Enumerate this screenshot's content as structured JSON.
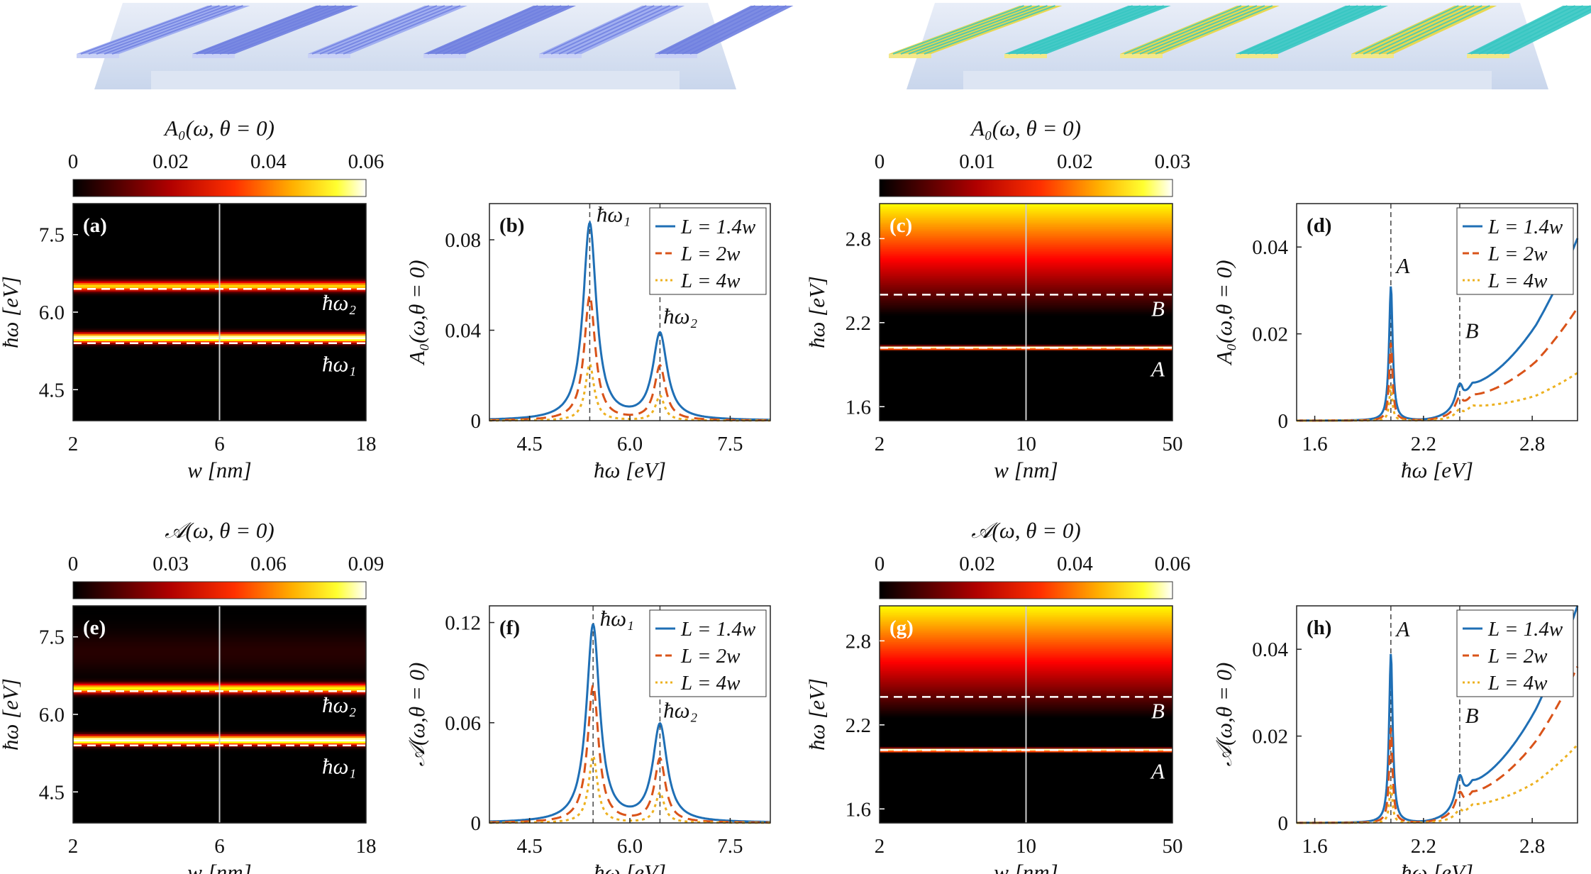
{
  "colors": {
    "blue": "#1f6fb5",
    "red": "#d95319",
    "yellow": "#edb120",
    "dash": "#444444",
    "white_dash": "#ffffff",
    "illus_left": "#7a8fe6",
    "illus_right_a": "#e8d640",
    "illus_right_b": "#35c7c2"
  },
  "illustrations": [
    {
      "name": "illustration-left",
      "ribbons": 6,
      "palette": [
        "#9aa9ef",
        "#6f7fe0",
        "#c9d1f6"
      ]
    },
    {
      "name": "illustration-right",
      "ribbons": 6,
      "palette": [
        "#e8d640",
        "#35c7c2",
        "#f2e88a"
      ]
    }
  ],
  "colorbars": [
    {
      "id": "cb-a",
      "title": "A₀(ω, θ = 0)",
      "ticks": [
        "0",
        "0.02",
        "0.04",
        "0.06"
      ]
    },
    {
      "id": "cb-c",
      "title": "A₀(ω, θ = 0)",
      "ticks": [
        "0",
        "0.01",
        "0.02",
        "0.03"
      ]
    },
    {
      "id": "cb-e",
      "title": "𝒜(ω, θ = 0)",
      "ticks": [
        "0",
        "0.03",
        "0.06",
        "0.09"
      ]
    },
    {
      "id": "cb-g",
      "title": "𝒜(ω, θ = 0)",
      "ticks": [
        "0",
        "0.02",
        "0.04",
        "0.06"
      ]
    }
  ],
  "chart_data": [
    {
      "panel": "(a)",
      "type": "heatmap",
      "xlabel": "w [nm]",
      "ylabel": "ħω [eV]",
      "xticks": [
        "2",
        "6",
        "18"
      ],
      "yticks": [
        "4.5",
        "6.0",
        "7.5"
      ],
      "ylim": [
        3.9,
        8.1
      ],
      "xscale": "log",
      "xlim": [
        2,
        18
      ],
      "bright_bands": [
        {
          "y": 5.5,
          "strength": 1.0
        },
        {
          "y": 6.5,
          "strength": 0.75
        }
      ],
      "dashed_lines": [
        {
          "y": 5.4,
          "label": "ħω₁"
        },
        {
          "y": 6.45,
          "label": "ħω₂"
        }
      ],
      "vertical_line_x": 6
    },
    {
      "panel": "(b)",
      "type": "line",
      "xlabel": "ħω [eV]",
      "ylabel": "A₀(ω,θ = 0)",
      "xticks": [
        "4.5",
        "6.0",
        "7.5"
      ],
      "yticks": [
        "0",
        "0.04",
        "0.08"
      ],
      "xlim": [
        3.9,
        8.1
      ],
      "ylim": [
        0,
        0.096
      ],
      "peaks_x": [
        5.4,
        6.45
      ],
      "series": [
        {
          "name": "L = 1.4w",
          "amps": [
            0.087,
            0.038
          ],
          "widths": [
            0.12,
            0.13
          ],
          "base": 0.0,
          "rise": 0.0
        },
        {
          "name": "L = 2w",
          "amps": [
            0.055,
            0.024
          ],
          "widths": [
            0.1,
            0.1
          ],
          "base": 0.0,
          "rise": 0.0
        },
        {
          "name": "L = 4w",
          "amps": [
            0.025,
            0.011
          ],
          "widths": [
            0.08,
            0.08
          ],
          "base": 0.0,
          "rise": 0.0
        }
      ],
      "annotations": [
        {
          "text": "ħω₁",
          "x": 5.5,
          "y": 0.088
        },
        {
          "text": "ħω₂",
          "x": 6.5,
          "y": 0.043
        }
      ],
      "legend": "top-right"
    },
    {
      "panel": "(c)",
      "type": "heatmap",
      "xlabel": "w [nm]",
      "ylabel": "ħω [eV]",
      "xticks": [
        "2",
        "10",
        "50"
      ],
      "yticks": [
        "1.6",
        "2.2",
        "2.8"
      ],
      "ylim": [
        1.5,
        3.05
      ],
      "xscale": "log",
      "xlim": [
        2,
        50
      ],
      "bright_bands": [
        {
          "y": 2.02,
          "strength": 1.0
        }
      ],
      "dashed_lines": [
        {
          "y": 2.02,
          "label": "A"
        },
        {
          "y": 2.4,
          "label": "B"
        }
      ],
      "vertical_line_x": 10
    },
    {
      "panel": "(d)",
      "type": "line",
      "xlabel": "ħω [eV]",
      "ylabel": "A₀(ω,θ = 0)",
      "xticks": [
        "1.6",
        "2.2",
        "2.8"
      ],
      "yticks": [
        "0",
        "0.02",
        "0.04"
      ],
      "xlim": [
        1.5,
        3.05
      ],
      "ylim": [
        0,
        0.05
      ],
      "peaks_x": [
        2.02,
        2.4
      ],
      "series": [
        {
          "name": "L = 1.4w",
          "amps": [
            0.031,
            0.006
          ],
          "widths": [
            0.012,
            0.03
          ],
          "base": 0.042,
          "rise": 1.0
        },
        {
          "name": "L = 2w",
          "amps": [
            0.018,
            0.004
          ],
          "widths": [
            0.011,
            0.03
          ],
          "base": 0.026,
          "rise": 0.8
        },
        {
          "name": "L = 4w",
          "amps": [
            0.008,
            0.002
          ],
          "widths": [
            0.01,
            0.03
          ],
          "base": 0.011,
          "rise": 0.6
        }
      ],
      "annotations": [
        {
          "text": "A",
          "x": 2.05,
          "y": 0.034
        },
        {
          "text": "B",
          "x": 2.43,
          "y": 0.019
        }
      ],
      "legend": "top-right"
    },
    {
      "panel": "(e)",
      "type": "heatmap",
      "xlabel": "w [nm]",
      "ylabel": "ħω [eV]",
      "xticks": [
        "2",
        "6",
        "18"
      ],
      "yticks": [
        "4.5",
        "6.0",
        "7.5"
      ],
      "ylim": [
        3.9,
        8.1
      ],
      "xscale": "log",
      "xlim": [
        2,
        18
      ],
      "bright_bands": [
        {
          "y": 5.5,
          "strength": 1.0
        },
        {
          "y": 6.5,
          "strength": 0.8
        }
      ],
      "dashed_lines": [
        {
          "y": 5.4,
          "label": "ħω₁"
        },
        {
          "y": 6.45,
          "label": "ħω₂"
        }
      ],
      "vertical_line_x": 6
    },
    {
      "panel": "(f)",
      "type": "line",
      "xlabel": "ħω [eV]",
      "ylabel": "𝒜(ω,θ = 0)",
      "xticks": [
        "4.5",
        "6.0",
        "7.5"
      ],
      "yticks": [
        "0",
        "0.06",
        "0.12"
      ],
      "xlim": [
        3.9,
        8.1
      ],
      "ylim": [
        0,
        0.13
      ],
      "peaks_x": [
        5.45,
        6.45
      ],
      "series": [
        {
          "name": "L = 1.4w",
          "amps": [
            0.118,
            0.058
          ],
          "widths": [
            0.12,
            0.13
          ],
          "base": 0.0,
          "rise": 0.0
        },
        {
          "name": "L = 2w",
          "amps": [
            0.082,
            0.038
          ],
          "widths": [
            0.1,
            0.1
          ],
          "base": 0.0,
          "rise": 0.0
        },
        {
          "name": "L = 4w",
          "amps": [
            0.04,
            0.018
          ],
          "widths": [
            0.08,
            0.08
          ],
          "base": 0.0,
          "rise": 0.0
        }
      ],
      "annotations": [
        {
          "text": "ħω₁",
          "x": 5.55,
          "y": 0.118
        },
        {
          "text": "ħω₂",
          "x": 6.5,
          "y": 0.063
        }
      ],
      "legend": "top-right"
    },
    {
      "panel": "(g)",
      "type": "heatmap",
      "xlabel": "w [nm]",
      "ylabel": "ħω [eV]",
      "xticks": [
        "2",
        "10",
        "50"
      ],
      "yticks": [
        "1.6",
        "2.2",
        "2.8"
      ],
      "ylim": [
        1.5,
        3.05
      ],
      "xscale": "log",
      "xlim": [
        2,
        50
      ],
      "bright_bands": [
        {
          "y": 2.02,
          "strength": 1.0
        }
      ],
      "dashed_lines": [
        {
          "y": 2.02,
          "label": "A"
        },
        {
          "y": 2.4,
          "label": "B"
        }
      ],
      "vertical_line_x": 10
    },
    {
      "panel": "(h)",
      "type": "line",
      "xlabel": "ħω [eV]",
      "ylabel": "𝒜(ω,θ = 0)",
      "xticks": [
        "1.6",
        "2.2",
        "2.8"
      ],
      "yticks": [
        "0",
        "0.02",
        "0.04"
      ],
      "xlim": [
        1.5,
        3.05
      ],
      "ylim": [
        0,
        0.05
      ],
      "peaks_x": [
        2.02,
        2.4
      ],
      "series": [
        {
          "name": "L = 1.4w",
          "amps": [
            0.039,
            0.008
          ],
          "widths": [
            0.012,
            0.03
          ],
          "base": 0.05,
          "rise": 1.0
        },
        {
          "name": "L = 2w",
          "amps": [
            0.022,
            0.005
          ],
          "widths": [
            0.011,
            0.03
          ],
          "base": 0.036,
          "rise": 0.8
        },
        {
          "name": "L = 4w",
          "amps": [
            0.009,
            0.002
          ],
          "widths": [
            0.01,
            0.03
          ],
          "base": 0.018,
          "rise": 0.6
        }
      ],
      "annotations": [
        {
          "text": "A",
          "x": 2.05,
          "y": 0.043
        },
        {
          "text": "B",
          "x": 2.43,
          "y": 0.023
        }
      ],
      "legend": "top-right"
    }
  ]
}
